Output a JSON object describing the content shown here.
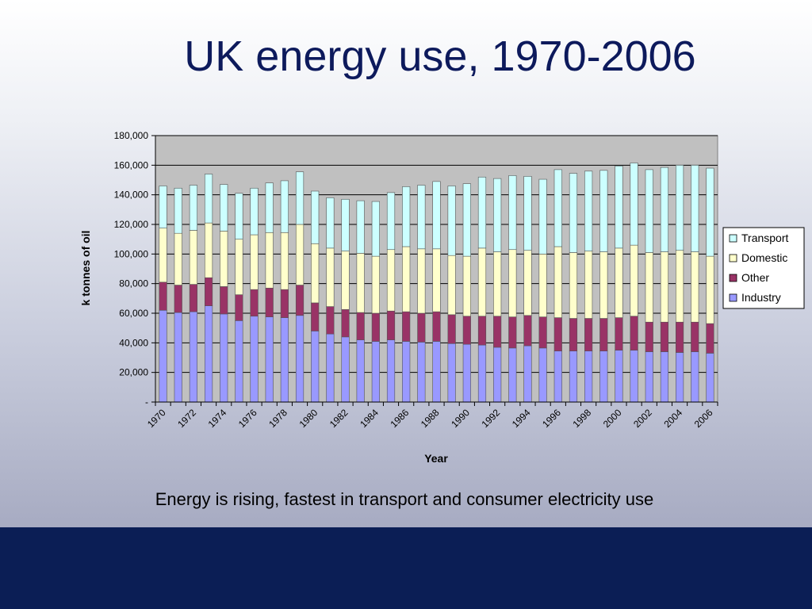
{
  "slide": {
    "title": "UK energy use, 1970-2006",
    "caption": "Energy is rising, fastest in transport and consumer electricity use"
  },
  "chart_data": {
    "type": "bar",
    "stacked": true,
    "title": "",
    "xlabel": "Year",
    "ylabel": "k tonnes of oil",
    "ylim": [
      0,
      180000
    ],
    "yticks": [
      "-",
      "20,000",
      "40,000",
      "60,000",
      "80,000",
      "100,000",
      "120,000",
      "140,000",
      "160,000",
      "180,000"
    ],
    "ytick_values": [
      0,
      20000,
      40000,
      60000,
      80000,
      100000,
      120000,
      140000,
      160000,
      180000
    ],
    "xtick_labels": [
      "1970",
      "1972",
      "1974",
      "1976",
      "1978",
      "1980",
      "1982",
      "1984",
      "1986",
      "1988",
      "1990",
      "1992",
      "1994",
      "1996",
      "1998",
      "2000",
      "2002",
      "2004",
      "2006"
    ],
    "grid": true,
    "legend_position": "right",
    "plot_background": "#c0c0c0",
    "categories": [
      "1970",
      "1971",
      "1972",
      "1973",
      "1974",
      "1975",
      "1976",
      "1977",
      "1978",
      "1979",
      "1980",
      "1981",
      "1982",
      "1983",
      "1984",
      "1985",
      "1986",
      "1987",
      "1988",
      "1989",
      "1990",
      "1991",
      "1992",
      "1993",
      "1994",
      "1995",
      "1996",
      "1997",
      "1998",
      "1999",
      "2000",
      "2001",
      "2002",
      "2003",
      "2004",
      "2005",
      "2006"
    ],
    "series": [
      {
        "name": "Industry",
        "color": "#9999ff",
        "values": [
          62000,
          60500,
          61000,
          65000,
          59500,
          55000,
          58000,
          57500,
          57000,
          58500,
          48000,
          46000,
          44000,
          42000,
          41000,
          42000,
          41000,
          40500,
          41000,
          39500,
          39000,
          38500,
          37000,
          36500,
          38000,
          36500,
          34500,
          34500,
          34500,
          34500,
          35000,
          35000,
          34000,
          34000,
          33500,
          34000,
          33000
        ]
      },
      {
        "name": "Other",
        "color": "#993366",
        "values": [
          19000,
          18500,
          18500,
          19000,
          18500,
          17500,
          18000,
          19500,
          19000,
          20500,
          19000,
          18500,
          18500,
          18500,
          19000,
          19500,
          20000,
          19500,
          20000,
          19500,
          19000,
          19500,
          21000,
          21000,
          20500,
          21000,
          22500,
          22000,
          22000,
          22000,
          22000,
          23000,
          20000,
          20000,
          20500,
          20000,
          20000
        ]
      },
      {
        "name": "Domestic",
        "color": "#ffffcc",
        "values": [
          36500,
          35000,
          36500,
          37000,
          37500,
          37500,
          37000,
          37500,
          38500,
          41000,
          40000,
          39500,
          39500,
          40000,
          38500,
          41500,
          44000,
          43500,
          42500,
          40000,
          40500,
          46000,
          43500,
          45500,
          44000,
          42500,
          48000,
          44500,
          45500,
          45000,
          47000,
          48000,
          47000,
          47500,
          48500,
          47500,
          45500
        ]
      },
      {
        "name": "Transport",
        "color": "#ccffff",
        "values": [
          28500,
          30500,
          30500,
          33000,
          31500,
          31000,
          31500,
          33500,
          35000,
          35500,
          35500,
          34000,
          35000,
          35500,
          37000,
          38500,
          40500,
          43000,
          45500,
          47000,
          49000,
          48000,
          49500,
          50000,
          50000,
          50500,
          52000,
          53500,
          54000,
          55000,
          55500,
          55500,
          56000,
          57000,
          57500,
          58500,
          59500
        ]
      }
    ]
  }
}
